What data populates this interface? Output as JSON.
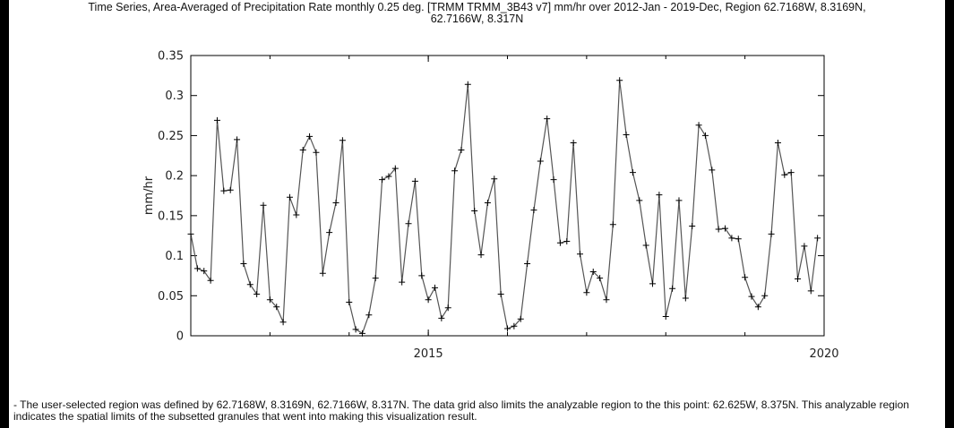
{
  "title_line1": "Time Series, Area-Averaged of Precipitation Rate monthly 0.25 deg. [TRMM TRMM_3B43 v7] mm/hr over 2012-Jan - 2019-Dec, Region 62.7168W, 8.3169N,",
  "title_line2": "62.7166W, 8.317N",
  "footnote": "- The user-selected region was defined by 62.7168W, 8.3169N, 62.7166W, 8.317N. The data grid also limits the analyzable region to the this point: 62.625W, 8.375N. This analyzable region indicates the spatial limits of the subsetted granules that went into making this visualization result.",
  "chart_data": {
    "type": "line",
    "title": "Time Series, Area-Averaged of Precipitation Rate monthly 0.25 deg. [TRMM TRMM_3B43 v7] mm/hr over 2012-Jan - 2019-Dec, Region 62.7168W, 8.3169N, 62.7166W, 8.317N",
    "xlabel": "",
    "ylabel": "mm/hr",
    "x_start": "2012-01",
    "x_end": "2019-12",
    "x_frequency": "monthly",
    "xlim": [
      "2012-01",
      "2020-01"
    ],
    "ylim": [
      0,
      0.35
    ],
    "x_ticks": [
      "2015",
      "2020"
    ],
    "y_ticks": [
      "0",
      "0.05",
      "0.1",
      "0.15",
      "0.2",
      "0.25",
      "0.3",
      "0.35"
    ],
    "marker": "plus",
    "line_color": "#555555",
    "grid": false,
    "legend": "none",
    "series": [
      {
        "values": [
          0.127,
          0.084,
          0.081,
          0.069,
          0.269,
          0.181,
          0.182,
          0.245,
          0.09,
          0.064,
          0.052,
          0.163,
          0.045,
          0.036,
          0.017,
          0.173,
          0.151,
          0.232,
          0.249,
          0.229,
          0.078,
          0.129,
          0.166,
          0.244,
          0.042,
          0.008,
          0.003,
          0.026,
          0.072,
          0.195,
          0.199,
          0.209,
          0.067,
          0.14,
          0.193,
          0.075,
          0.045,
          0.06,
          0.022,
          0.035,
          0.206,
          0.232,
          0.314,
          0.156,
          0.101,
          0.166,
          0.196,
          0.052,
          0.009,
          0.012,
          0.021,
          0.09,
          0.157,
          0.218,
          0.271,
          0.195,
          0.116,
          0.118,
          0.241,
          0.102,
          0.054,
          0.08,
          0.072,
          0.045,
          0.139,
          0.319,
          0.251,
          0.204,
          0.169,
          0.113,
          0.065,
          0.176,
          0.024,
          0.059,
          0.169,
          0.047,
          0.137,
          0.263,
          0.25,
          0.207,
          0.133,
          0.134,
          0.122,
          0.121,
          0.073,
          0.049,
          0.036,
          0.05,
          0.127,
          0.241,
          0.201,
          0.204,
          0.071,
          0.112,
          0.056,
          0.122
        ]
      }
    ]
  }
}
